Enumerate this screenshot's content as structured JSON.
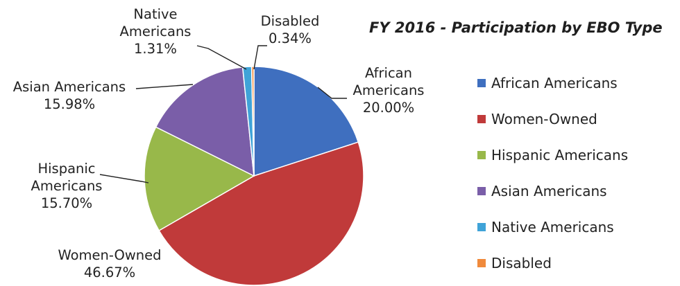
{
  "chart_data": {
    "type": "pie",
    "title": "FY 2016 - Participation by EBO Type",
    "legend_position": "right",
    "slices": [
      {
        "name": "African Americans",
        "label_lines": [
          "African",
          "Americans"
        ],
        "value": 20.0,
        "value_label": "20.00%",
        "color": "#3f6fbf"
      },
      {
        "name": "Women-Owned",
        "label_lines": [
          "Women-Owned"
        ],
        "value": 46.67,
        "value_label": "46.67%",
        "color": "#c03a3a"
      },
      {
        "name": "Hispanic Americans",
        "label_lines": [
          "Hispanic",
          "Americans"
        ],
        "value": 15.7,
        "value_label": "15.70%",
        "color": "#98b84a"
      },
      {
        "name": "Asian Americans",
        "label_lines": [
          "Asian Americans"
        ],
        "value": 15.98,
        "value_label": "15.98%",
        "color": "#7a5ea8"
      },
      {
        "name": "Native Americans",
        "label_lines": [
          "Native",
          "Americans"
        ],
        "value": 1.31,
        "value_label": "1.31%",
        "color": "#3fa3d8"
      },
      {
        "name": "Disabled",
        "label_lines": [
          "Disabled"
        ],
        "value": 0.34,
        "value_label": "0.34%",
        "color": "#f08a3c"
      }
    ]
  }
}
